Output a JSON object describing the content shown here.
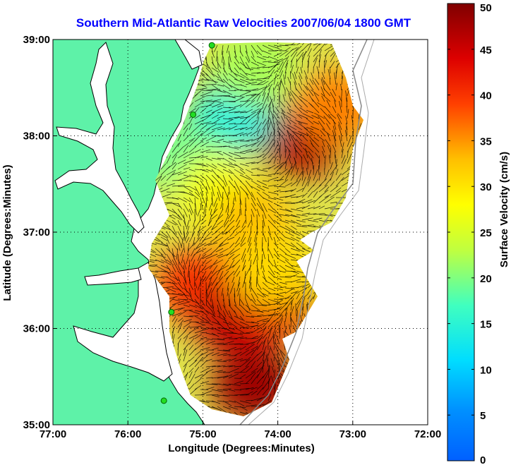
{
  "chart_data": {
    "type": "heatmap",
    "title": "Southern Mid-Atlantic Raw Velocities 2007/06/04 1800 GMT",
    "xlabel": "Longitude (Degrees:Minutes)",
    "ylabel": "Latitude (Degrees:Minutes)",
    "xlim": [
      -77,
      -72
    ],
    "ylim": [
      35,
      39
    ],
    "x_ticks": [
      {
        "value": -77,
        "label": "77:00"
      },
      {
        "value": -76,
        "label": "76:00"
      },
      {
        "value": -75,
        "label": "75:00"
      },
      {
        "value": -74,
        "label": "74:00"
      },
      {
        "value": -73,
        "label": "73:00"
      },
      {
        "value": -72,
        "label": "72:00"
      }
    ],
    "y_ticks": [
      {
        "value": 35,
        "label": "35:00"
      },
      {
        "value": 36,
        "label": "36:00"
      },
      {
        "value": 37,
        "label": "37:00"
      },
      {
        "value": 38,
        "label": "38:00"
      },
      {
        "value": 39,
        "label": "39:00"
      }
    ],
    "grid": true,
    "colorbar": {
      "label": "Surface Velocity (cm/s)",
      "range": [
        0,
        50
      ],
      "ticks": [
        0,
        5,
        10,
        15,
        20,
        25,
        30,
        35,
        40,
        45,
        50
      ],
      "colormap": "jet"
    },
    "land_color": "#5ef2a8",
    "title_color": "#0000ff",
    "stations": [
      {
        "lon": -74.88,
        "lat": 38.94
      },
      {
        "lon": -75.13,
        "lat": 38.22
      },
      {
        "lon": -75.42,
        "lat": 36.17
      },
      {
        "lon": -75.52,
        "lat": 35.25
      }
    ],
    "velocity_fields": [
      {
        "region": "north_outer",
        "lon": -73.7,
        "lat": 37.95,
        "speed": 47
      },
      {
        "region": "north_outer_rim",
        "lon": -73.25,
        "lat": 38.3,
        "speed": 36
      },
      {
        "region": "north_inner",
        "lon": -74.6,
        "lat": 38.2,
        "speed": 14
      },
      {
        "region": "north_nearshore",
        "lon": -75.2,
        "lat": 37.75,
        "speed": 19
      },
      {
        "region": "north_top",
        "lon": -74.3,
        "lat": 38.7,
        "speed": 22
      },
      {
        "region": "shelf_band",
        "lon": -74.8,
        "lat": 37.45,
        "speed": 27
      },
      {
        "region": "central",
        "lon": -74.35,
        "lat": 37.1,
        "speed": 33
      },
      {
        "region": "south_west",
        "lon": -75.05,
        "lat": 36.45,
        "speed": 40
      },
      {
        "region": "south_center",
        "lon": -74.55,
        "lat": 36.1,
        "speed": 46
      },
      {
        "region": "south_east",
        "lon": -74.05,
        "lat": 36.25,
        "speed": 43
      },
      {
        "region": "south_tip",
        "lon": -74.3,
        "lat": 35.4,
        "speed": 48
      },
      {
        "region": "south_eddy_edge",
        "lon": -74.05,
        "lat": 36.6,
        "speed": 31
      }
    ]
  }
}
